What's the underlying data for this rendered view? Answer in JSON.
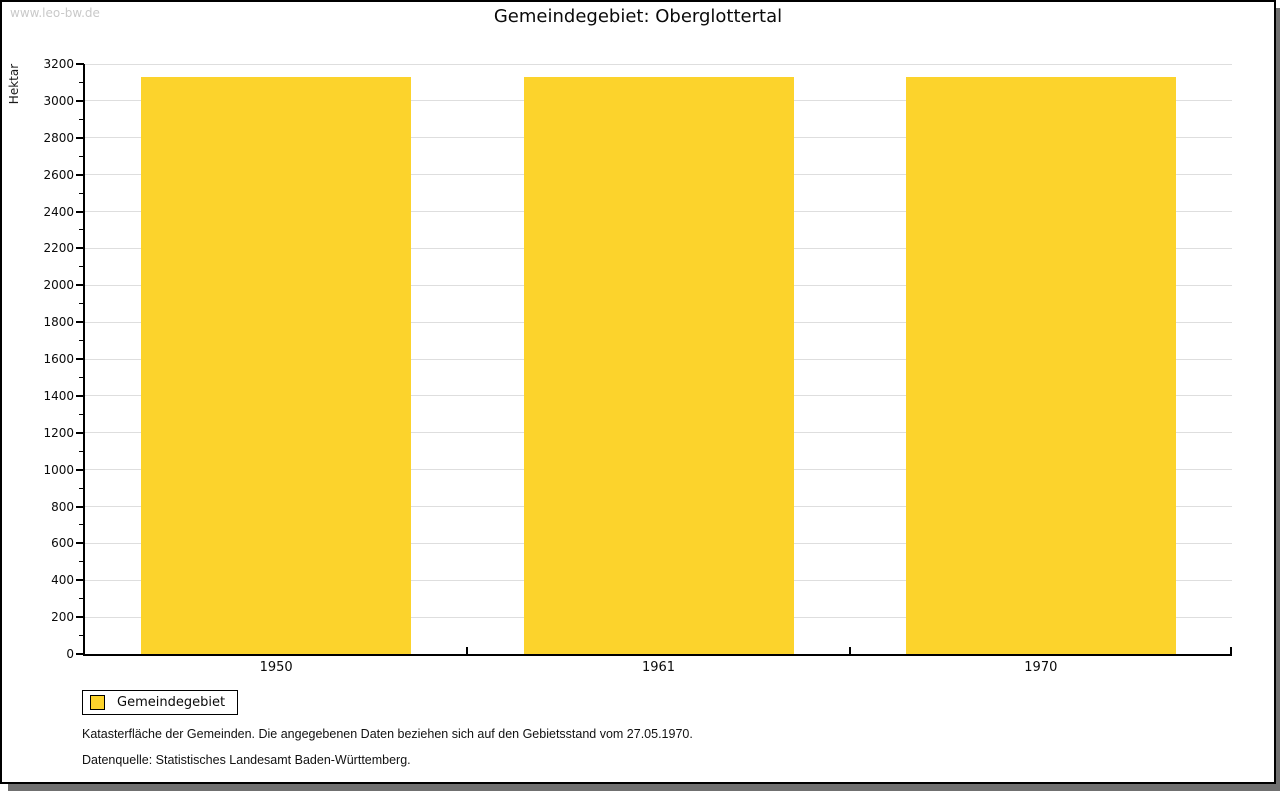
{
  "watermark": "www.leo-bw.de",
  "legend": {
    "label": "Gemeindegebiet",
    "swatch_color": "#FCD32C"
  },
  "footnotes": [
    "Katasterfläche der Gemeinden. Die angegebenen Daten beziehen sich auf den Gebietsstand vom 27.05.1970.",
    "Datenquelle: Statistisches Landesamt Baden-Württemberg."
  ],
  "colors": {
    "bar": "#FCD32C",
    "grid": "#DEDEDE",
    "axis": "#000000",
    "watermark": "#C9C9C9",
    "shadow": "#707070",
    "background": "#FFFFFF"
  },
  "chart_data": {
    "type": "bar",
    "title": "Gemeindegebiet: Oberglottertal",
    "categories": [
      "1950",
      "1961",
      "1970"
    ],
    "series": [
      {
        "name": "Gemeindegebiet",
        "values": [
          3130,
          3130,
          3130
        ]
      }
    ],
    "xlabel": "",
    "ylabel": "Hektar",
    "ylim": [
      0,
      3200
    ],
    "ytick_step": 200,
    "yminor_step": 100,
    "grid": true,
    "legend_position": "bottom-left"
  }
}
